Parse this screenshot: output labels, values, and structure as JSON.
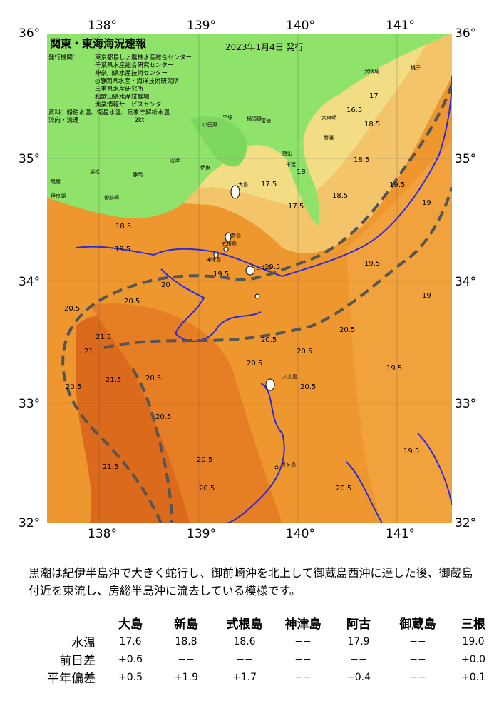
{
  "map": {
    "title": "関東・東海海況速報",
    "date": "2023年1月4日 発行",
    "issuer_label": "発行機関：",
    "issuers": [
      "東京都島しょ農林水産総合センター",
      "千葉県水産総合研究センター",
      "神奈川県水産技術センター",
      "◎静岡県水産・海洋技術研究所",
      "三重県水産研究所",
      "和歌山県水産試験場",
      "漁業情報サービスセンター"
    ],
    "data_source": "資料：船舶水温、衛星水温、気象庁解析水温",
    "flow_label": "流向・流速",
    "flow_scale": "2kt",
    "lon_labels": [
      "138°",
      "139°",
      "140°",
      "141°"
    ],
    "lat_labels": [
      "36°",
      "35°",
      "34°",
      "33°",
      "32°"
    ],
    "place_names": [
      "大島",
      "新島",
      "式根島",
      "神津島",
      "三宅島",
      "八丈島",
      "青ヶ島",
      "小田原",
      "平塚",
      "横須賀",
      "館山",
      "千葉",
      "銚子",
      "富津",
      "勝浦",
      "太東岬",
      "犬吠埼",
      "伊東",
      "沼津",
      "静岡",
      "御前崎",
      "浜松",
      "伊良湖",
      "尾鷲"
    ],
    "isotherms": [
      "16.5",
      "17",
      "17.5",
      "18",
      "18.5",
      "19",
      "19.5",
      "20",
      "20.5",
      "21",
      "21.5"
    ],
    "colors": {
      "land": "#8fe36a",
      "cold": "#f0e08a",
      "mid": "#f5a542",
      "warm": "#ec8d2a",
      "hot": "#d9631a",
      "kuroshio": "#555555",
      "isotherm_blue": "#2222dd"
    }
  },
  "summary": "黒潮は紀伊半島沖で大きく蛇行し、御前崎沖を北上して御蔵島西沖に達した後、御蔵島付近を東流し、房総半島沖に流去している模様です。",
  "stats": {
    "islands": [
      "大島",
      "新島",
      "式根島",
      "神津島",
      "阿古",
      "御蔵島",
      "三根"
    ],
    "rows": [
      {
        "label": "水温",
        "values": [
          "17.6",
          "18.8",
          "18.6",
          "−−",
          "17.9",
          "−−",
          "19.0"
        ]
      },
      {
        "label": "前日差",
        "values": [
          "+0.6",
          "−−",
          "−−",
          "−−",
          "−−",
          "−−",
          "+0.0"
        ]
      },
      {
        "label": "平年偏差",
        "values": [
          "+0.5",
          "+1.9",
          "+1.7",
          "−−",
          "−0.4",
          "−−",
          "+0.1"
        ]
      }
    ]
  }
}
